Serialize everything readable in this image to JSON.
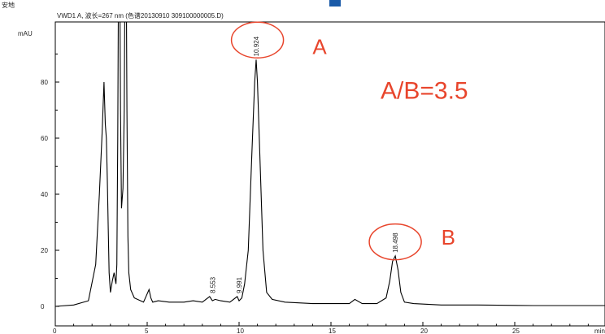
{
  "header": {
    "top_left": "安地",
    "trace_title": "VWD1 A, 波长=267 nm (色谱20130910 309100000005.D)"
  },
  "chart_data": {
    "type": "line",
    "ylabel": "mAU",
    "xlabel": "min",
    "xlim": [
      0,
      30
    ],
    "ylim": [
      -5,
      105
    ],
    "x_ticks": [
      0,
      5,
      10,
      15,
      20,
      25
    ],
    "y_ticks": [
      0,
      20,
      40,
      60,
      80
    ],
    "grid": false,
    "series": [
      {
        "color": "#000000",
        "x": [
          0,
          1.0,
          1.8,
          2.2,
          2.4,
          2.55,
          2.65,
          2.72,
          2.78,
          2.83,
          2.88,
          2.93,
          3.0,
          3.1,
          3.2,
          3.3,
          3.35,
          3.4,
          3.45,
          3.5,
          3.55,
          3.6,
          3.68,
          3.75,
          3.8,
          3.85,
          3.9,
          3.95,
          4.0,
          4.1,
          4.3,
          4.8,
          5.1,
          5.2,
          5.3,
          5.6,
          6.2,
          7.0,
          7.5,
          8.0,
          8.4,
          8.55,
          8.7,
          9.0,
          9.5,
          9.9,
          10.0,
          10.15,
          10.3,
          10.5,
          10.7,
          10.85,
          10.93,
          11.0,
          11.15,
          11.3,
          11.5,
          11.8,
          12.5,
          14.0,
          16.0,
          16.3,
          16.7,
          17.5,
          18.0,
          18.2,
          18.35,
          18.5,
          18.65,
          18.8,
          19.0,
          19.5,
          21.0,
          23.0,
          26.0,
          30.0
        ],
        "y": [
          0,
          0.5,
          2,
          15,
          40,
          62,
          80,
          65,
          60,
          45,
          28,
          12,
          5,
          9,
          12,
          8,
          15,
          60,
          135,
          130,
          70,
          35,
          42,
          70,
          130,
          135,
          70,
          25,
          12,
          6,
          3,
          1.5,
          6,
          3,
          1.5,
          2,
          1.5,
          1.5,
          2,
          1.5,
          3.5,
          2,
          2.5,
          2,
          1.5,
          3.5,
          2,
          3,
          8,
          20,
          55,
          80,
          88,
          80,
          50,
          20,
          5,
          2.5,
          1.5,
          1,
          1,
          2.5,
          1,
          1,
          3,
          9,
          16,
          18,
          13,
          5,
          1.5,
          1,
          0.5,
          0.5,
          0.3,
          0.3
        ]
      }
    ],
    "peak_labels": [
      {
        "x": 8.553,
        "y": 3.5,
        "label": "8.553"
      },
      {
        "x": 9.991,
        "y": 3.5,
        "label": "9.991"
      },
      {
        "x": 10.924,
        "y": 88,
        "label": "10.924"
      },
      {
        "x": 18.498,
        "y": 18,
        "label": "18.498"
      }
    ],
    "annotations": [
      {
        "text": "A",
        "x": 14.0,
        "y": 90,
        "size": 26
      },
      {
        "text": "B",
        "x": 21.0,
        "y": 22,
        "size": 26
      },
      {
        "text": "A/B=3.5",
        "x": 17.7,
        "y": 74,
        "size": 30
      }
    ],
    "circles": [
      {
        "x": 11.0,
        "y": 95,
        "label": "A"
      },
      {
        "x": 18.5,
        "y": 23,
        "label": "B"
      }
    ],
    "annotation_color": "#e8452c"
  }
}
